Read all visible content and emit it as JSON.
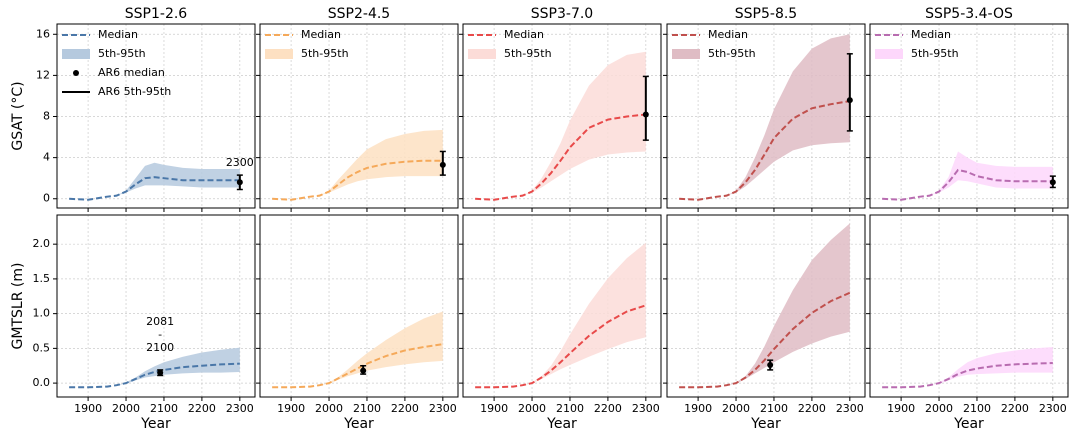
{
  "chart_data": [
    {
      "type": "line",
      "title": "SSP1-2.6",
      "ylabel": "GSAT (°C)",
      "show_xticklabels": false,
      "show_yticklabels": true,
      "grid": true,
      "x": [
        1850,
        1900,
        1950,
        1975,
        2000,
        2025,
        2050,
        2075,
        2100,
        2150,
        2200,
        2250,
        2300
      ],
      "series": [
        {
          "name": "Median",
          "color": "#4a77a8",
          "values": [
            0,
            -0.1,
            0.2,
            0.3,
            0.7,
            1.4,
            2.0,
            2.1,
            2.0,
            1.8,
            1.8,
            1.8,
            1.8
          ]
        }
      ],
      "band": {
        "name": "5th-95th",
        "color": "#b5c9de",
        "lower": [
          0,
          -0.1,
          0.2,
          0.3,
          0.6,
          1.0,
          1.3,
          1.3,
          1.3,
          1.2,
          1.1,
          1.1,
          1.1
        ],
        "upper": [
          0,
          -0.1,
          0.2,
          0.3,
          0.8,
          2.0,
          3.2,
          3.5,
          3.3,
          3.0,
          2.9,
          2.9,
          2.9
        ]
      },
      "ar6": {
        "median_name": "AR6 median",
        "range_name": "AR6 5th-95th",
        "x": 2300,
        "value": 1.6,
        "lower": 0.9,
        "upper": 2.3
      },
      "annotation": [
        "2300"
      ],
      "xlim": [
        1818,
        2340
      ],
      "xticks": [
        1900,
        2000,
        2100,
        2200,
        2300
      ],
      "ylim": [
        -0.9,
        17
      ],
      "yticks": [
        0,
        4,
        8,
        12,
        16
      ]
    },
    {
      "type": "line",
      "title": "SSP2-4.5",
      "show_xticklabels": false,
      "show_yticklabels": false,
      "grid": true,
      "x": [
        1850,
        1900,
        1950,
        1975,
        2000,
        2025,
        2050,
        2075,
        2100,
        2150,
        2200,
        2250,
        2300
      ],
      "series": [
        {
          "name": "Median",
          "color": "#f5a95a",
          "values": [
            0,
            -0.1,
            0.2,
            0.3,
            0.7,
            1.4,
            2.1,
            2.6,
            3.0,
            3.4,
            3.6,
            3.7,
            3.7
          ]
        }
      ],
      "band": {
        "name": "5th-95th",
        "color": "#fde0c2",
        "lower": [
          0,
          -0.1,
          0.2,
          0.3,
          0.6,
          1.0,
          1.4,
          1.7,
          1.9,
          2.1,
          2.2,
          2.2,
          2.2
        ],
        "upper": [
          0,
          -0.1,
          0.2,
          0.3,
          0.8,
          1.9,
          2.9,
          3.9,
          4.8,
          5.8,
          6.3,
          6.6,
          6.7
        ]
      },
      "ar6": {
        "x": 2300,
        "value": 3.3,
        "lower": 2.3,
        "upper": 4.6
      },
      "xlim": [
        1818,
        2340
      ],
      "xticks": [
        1900,
        2000,
        2100,
        2200,
        2300
      ],
      "ylim": [
        -0.9,
        17
      ],
      "yticks": [
        0,
        4,
        8,
        12,
        16
      ]
    },
    {
      "type": "line",
      "title": "SSP3-7.0",
      "show_xticklabels": false,
      "show_yticklabels": false,
      "grid": true,
      "x": [
        1850,
        1900,
        1950,
        1975,
        2000,
        2025,
        2050,
        2075,
        2100,
        2150,
        2200,
        2250,
        2300
      ],
      "series": [
        {
          "name": "Median",
          "color": "#e84a4a",
          "values": [
            0,
            -0.1,
            0.2,
            0.3,
            0.7,
            1.5,
            2.5,
            3.7,
            5.0,
            6.9,
            7.7,
            8.0,
            8.2
          ]
        }
      ],
      "band": {
        "name": "5th-95th",
        "color": "#fcdcd8",
        "lower": [
          0,
          -0.1,
          0.2,
          0.3,
          0.6,
          1.1,
          1.7,
          2.3,
          2.9,
          3.8,
          4.3,
          4.5,
          4.6
        ],
        "upper": [
          0,
          -0.1,
          0.2,
          0.3,
          0.8,
          2.0,
          3.6,
          5.4,
          7.6,
          11,
          13,
          14,
          14.3
        ]
      },
      "ar6": {
        "x": 2300,
        "value": 8.2,
        "lower": 5.7,
        "upper": 11.9
      },
      "xlim": [
        1818,
        2340
      ],
      "xticks": [
        1900,
        2000,
        2100,
        2200,
        2300
      ],
      "ylim": [
        -0.9,
        17
      ],
      "yticks": [
        0,
        4,
        8,
        12,
        16
      ]
    },
    {
      "type": "line",
      "title": "SSP5-8.5",
      "show_xticklabels": false,
      "show_yticklabels": false,
      "grid": true,
      "x": [
        1850,
        1900,
        1950,
        1975,
        2000,
        2025,
        2050,
        2075,
        2100,
        2150,
        2200,
        2250,
        2300
      ],
      "series": [
        {
          "name": "Median",
          "color": "#c0504d",
          "values": [
            0,
            -0.1,
            0.2,
            0.3,
            0.7,
            1.6,
            2.8,
            4.3,
            5.9,
            7.8,
            8.8,
            9.2,
            9.5
          ]
        }
      ],
      "band": {
        "name": "5th-95th",
        "color": "#dfbcc4",
        "lower": [
          0,
          -0.1,
          0.2,
          0.3,
          0.6,
          1.2,
          2.0,
          2.8,
          3.6,
          4.7,
          5.2,
          5.4,
          5.5
        ],
        "upper": [
          0,
          -0.1,
          0.2,
          0.3,
          0.8,
          2.1,
          4.0,
          6.2,
          8.7,
          12.4,
          14.6,
          15.6,
          16.0
        ]
      },
      "ar6": {
        "x": 2300,
        "value": 9.6,
        "lower": 6.6,
        "upper": 14.1
      },
      "xlim": [
        1818,
        2340
      ],
      "xticks": [
        1900,
        2000,
        2100,
        2200,
        2300
      ],
      "ylim": [
        -0.9,
        17
      ],
      "yticks": [
        0,
        4,
        8,
        12,
        16
      ]
    },
    {
      "type": "line",
      "title": "SSP5-3.4-OS",
      "show_xticklabels": false,
      "show_yticklabels": false,
      "grid": true,
      "x": [
        1850,
        1900,
        1950,
        1975,
        2000,
        2025,
        2050,
        2075,
        2100,
        2150,
        2200,
        2250,
        2300
      ],
      "series": [
        {
          "name": "Median",
          "color": "#b86cb0",
          "values": [
            0,
            -0.1,
            0.2,
            0.3,
            0.7,
            1.6,
            2.8,
            2.6,
            2.2,
            1.8,
            1.7,
            1.7,
            1.7
          ]
        }
      ],
      "band": {
        "name": "5th-95th",
        "color": "#fdd7fb",
        "lower": [
          0,
          -0.1,
          0.2,
          0.3,
          0.6,
          1.1,
          1.8,
          1.7,
          1.5,
          1.1,
          1.0,
          1.0,
          1.0
        ],
        "upper": [
          0,
          -0.1,
          0.2,
          0.3,
          0.8,
          2.1,
          4.6,
          4.0,
          3.5,
          3.2,
          3.1,
          3.1,
          3.1
        ]
      },
      "ar6": {
        "x": 2300,
        "value": 1.6,
        "lower": 1.1,
        "upper": 2.2
      },
      "xlim": [
        1818,
        2340
      ],
      "xticks": [
        1900,
        2000,
        2100,
        2200,
        2300
      ],
      "ylim": [
        -0.9,
        17
      ],
      "yticks": [
        0,
        4,
        8,
        12,
        16
      ]
    },
    {
      "type": "line",
      "ylabel": "GMTSLR (m)",
      "xlabel": "Year",
      "show_xticklabels": true,
      "show_yticklabels": true,
      "grid": true,
      "x": [
        1850,
        1900,
        1950,
        1975,
        2000,
        2025,
        2050,
        2075,
        2100,
        2150,
        2200,
        2250,
        2300
      ],
      "series": [
        {
          "color": "#4a77a8",
          "values": [
            -0.06,
            -0.06,
            -0.05,
            -0.03,
            0.0,
            0.06,
            0.12,
            0.16,
            0.19,
            0.23,
            0.25,
            0.27,
            0.28
          ]
        }
      ],
      "band": {
        "color": "#b5c9de",
        "lower": [
          -0.06,
          -0.06,
          -0.05,
          -0.03,
          -0.01,
          0.04,
          0.08,
          0.1,
          0.12,
          0.14,
          0.15,
          0.15,
          0.16
        ],
        "upper": [
          -0.06,
          -0.06,
          -0.05,
          -0.03,
          0.01,
          0.08,
          0.17,
          0.24,
          0.3,
          0.38,
          0.44,
          0.48,
          0.51
        ]
      },
      "ar6": {
        "x": 2090,
        "value": 0.15,
        "lower": 0.11,
        "upper": 0.19
      },
      "annotation": [
        "2081",
        "-",
        "2100"
      ],
      "xlim": [
        1818,
        2340
      ],
      "xticks": [
        1900,
        2000,
        2100,
        2200,
        2300
      ],
      "ylim": [
        -0.2,
        2.42
      ],
      "yticks": [
        {
          "value": 0,
          "label": "0.0"
        },
        0.5,
        {
          "value": 1,
          "label": "1.0"
        },
        1.5,
        {
          "value": 2,
          "label": "2.0"
        }
      ]
    },
    {
      "type": "line",
      "xlabel": "Year",
      "show_xticklabels": true,
      "show_yticklabels": false,
      "grid": true,
      "x": [
        1850,
        1900,
        1950,
        1975,
        2000,
        2025,
        2050,
        2075,
        2100,
        2150,
        2200,
        2250,
        2300
      ],
      "series": [
        {
          "color": "#f5a95a",
          "values": [
            -0.06,
            -0.06,
            -0.05,
            -0.03,
            0.0,
            0.07,
            0.14,
            0.21,
            0.28,
            0.39,
            0.47,
            0.52,
            0.56
          ]
        }
      ],
      "band": {
        "color": "#fde0c2",
        "lower": [
          -0.06,
          -0.06,
          -0.05,
          -0.03,
          -0.01,
          0.05,
          0.1,
          0.14,
          0.18,
          0.23,
          0.27,
          0.3,
          0.32
        ],
        "upper": [
          -0.06,
          -0.06,
          -0.05,
          -0.03,
          0.01,
          0.09,
          0.2,
          0.32,
          0.43,
          0.62,
          0.79,
          0.93,
          1.03
        ]
      },
      "ar6": {
        "x": 2090,
        "value": 0.18,
        "lower": 0.13,
        "upper": 0.25
      },
      "xlim": [
        1818,
        2340
      ],
      "xticks": [
        1900,
        2000,
        2100,
        2200,
        2300
      ],
      "ylim": [
        -0.2,
        2.42
      ],
      "yticks": [
        {
          "value": 0,
          "label": "0.0"
        },
        0.5,
        {
          "value": 1,
          "label": "1.0"
        },
        1.5,
        {
          "value": 2,
          "label": "2.0"
        }
      ]
    },
    {
      "type": "line",
      "xlabel": "Year",
      "show_xticklabels": true,
      "show_yticklabels": false,
      "grid": true,
      "x": [
        1850,
        1900,
        1950,
        1975,
        2000,
        2025,
        2050,
        2075,
        2100,
        2150,
        2200,
        2250,
        2300
      ],
      "series": [
        {
          "color": "#e84a4a",
          "values": [
            -0.06,
            -0.06,
            -0.05,
            -0.03,
            0.0,
            0.08,
            0.18,
            0.3,
            0.43,
            0.68,
            0.88,
            1.03,
            1.12
          ]
        }
      ],
      "band": {
        "color": "#fcdcd8",
        "lower": [
          -0.06,
          -0.06,
          -0.05,
          -0.03,
          -0.01,
          0.06,
          0.13,
          0.2,
          0.26,
          0.38,
          0.49,
          0.59,
          0.66
        ],
        "upper": [
          -0.06,
          -0.06,
          -0.05,
          -0.03,
          0.01,
          0.1,
          0.25,
          0.46,
          0.7,
          1.14,
          1.51,
          1.8,
          2.02
        ]
      },
      "xlim": [
        1818,
        2340
      ],
      "xticks": [
        1900,
        2000,
        2100,
        2200,
        2300
      ],
      "ylim": [
        -0.2,
        2.42
      ],
      "yticks": [
        {
          "value": 0,
          "label": "0.0"
        },
        0.5,
        {
          "value": 1,
          "label": "1.0"
        },
        1.5,
        {
          "value": 2,
          "label": "2.0"
        }
      ]
    },
    {
      "type": "line",
      "xlabel": "Year",
      "show_xticklabels": true,
      "show_yticklabels": false,
      "grid": true,
      "x": [
        1850,
        1900,
        1950,
        1975,
        2000,
        2025,
        2050,
        2075,
        2100,
        2150,
        2200,
        2250,
        2300
      ],
      "series": [
        {
          "color": "#c0504d",
          "values": [
            -0.06,
            -0.06,
            -0.05,
            -0.03,
            0.0,
            0.08,
            0.19,
            0.33,
            0.49,
            0.78,
            1.01,
            1.18,
            1.3
          ]
        }
      ],
      "band": {
        "color": "#dfbcc4",
        "lower": [
          -0.06,
          -0.06,
          -0.05,
          -0.03,
          -0.01,
          0.06,
          0.14,
          0.22,
          0.3,
          0.45,
          0.57,
          0.67,
          0.74
        ],
        "upper": [
          -0.06,
          -0.06,
          -0.05,
          -0.03,
          0.01,
          0.1,
          0.28,
          0.53,
          0.82,
          1.34,
          1.77,
          2.06,
          2.3
        ]
      },
      "ar6": {
        "x": 2090,
        "value": 0.26,
        "lower": 0.19,
        "upper": 0.33
      },
      "xlim": [
        1818,
        2340
      ],
      "xticks": [
        1900,
        2000,
        2100,
        2200,
        2300
      ],
      "ylim": [
        -0.2,
        2.42
      ],
      "yticks": [
        {
          "value": 0,
          "label": "0.0"
        },
        0.5,
        {
          "value": 1,
          "label": "1.0"
        },
        1.5,
        {
          "value": 2,
          "label": "2.0"
        }
      ]
    },
    {
      "type": "line",
      "xlabel": "Year",
      "show_xticklabels": true,
      "show_yticklabels": false,
      "grid": true,
      "x": [
        1850,
        1900,
        1950,
        1975,
        2000,
        2025,
        2050,
        2075,
        2100,
        2150,
        2200,
        2250,
        2300
      ],
      "series": [
        {
          "color": "#b86cb0",
          "values": [
            -0.06,
            -0.06,
            -0.05,
            -0.03,
            0.0,
            0.06,
            0.13,
            0.18,
            0.21,
            0.25,
            0.27,
            0.28,
            0.29
          ]
        }
      ],
      "band": {
        "color": "#fdd7fb",
        "lower": [
          -0.06,
          -0.06,
          -0.05,
          -0.03,
          -0.01,
          0.04,
          0.09,
          0.12,
          0.13,
          0.14,
          0.15,
          0.15,
          0.15
        ],
        "upper": [
          -0.06,
          -0.06,
          -0.05,
          -0.03,
          0.01,
          0.08,
          0.2,
          0.3,
          0.36,
          0.43,
          0.47,
          0.5,
          0.52
        ]
      },
      "xlim": [
        1818,
        2340
      ],
      "xticks": [
        1900,
        2000,
        2100,
        2200,
        2300
      ],
      "ylim": [
        -0.2,
        2.42
      ],
      "yticks": [
        {
          "value": 0,
          "label": "0.0"
        },
        0.5,
        {
          "value": 1,
          "label": "1.0"
        },
        1.5,
        {
          "value": 2,
          "label": "2.0"
        }
      ]
    }
  ]
}
